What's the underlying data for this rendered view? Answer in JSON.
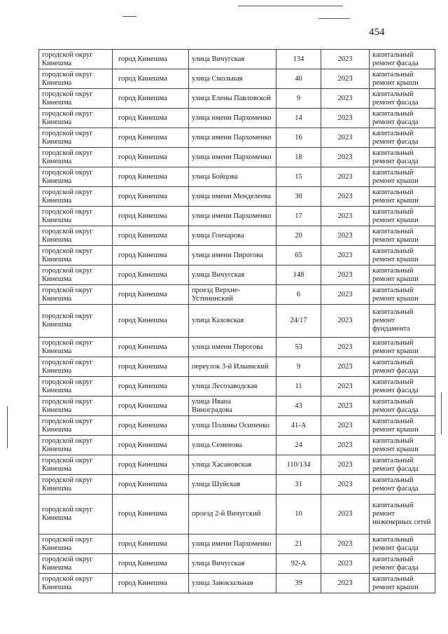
{
  "page_number": "454",
  "rows": [
    {
      "district": "городской округ Кинешма",
      "city": "город Кинешма",
      "street": "улица Вичугская",
      "house": "134",
      "year": "2023",
      "work": "капитальный ремонт фасада"
    },
    {
      "district": "городской округ Кинешма",
      "city": "город Кинешма",
      "street": "улица Смольная",
      "house": "40",
      "year": "2023",
      "work": "капитальный ремонт крыши"
    },
    {
      "district": "городской округ Кинешма",
      "city": "город Кинешма",
      "street": "улица Елены Павловской",
      "house": "9",
      "year": "2023",
      "work": "капитальный ремонт фасада"
    },
    {
      "district": "городской округ Кинешма",
      "city": "город Кинешма",
      "street": "улица имени Пархоменко",
      "house": "14",
      "year": "2023",
      "work": "капитальный ремонт фасада"
    },
    {
      "district": "городской округ Кинешма",
      "city": "город Кинешма",
      "street": "улица имени Пархоменко",
      "house": "16",
      "year": "2023",
      "work": "капитальный ремонт фасада"
    },
    {
      "district": "городской округ Кинешма",
      "city": "город Кинешма",
      "street": "улица имени Пархоменко",
      "house": "18",
      "year": "2023",
      "work": "капитальный ремонт фасада"
    },
    {
      "district": "городской округ Кинешма",
      "city": "город Кинешма",
      "street": "улица Бойцова",
      "house": "15",
      "year": "2023",
      "work": "капитальный ремонт крыши"
    },
    {
      "district": "городской округ Кинешма",
      "city": "город Кинешма",
      "street": "улица имени Менделеева",
      "house": "30",
      "year": "2023",
      "work": "капитальный ремонт крыши"
    },
    {
      "district": "городской округ Кинешма",
      "city": "город Кинешма",
      "street": "улица имени Пархоменко",
      "house": "17",
      "year": "2023",
      "work": "капитальный ремонт крыши"
    },
    {
      "district": "городской округ Кинешма",
      "city": "город Кинешма",
      "street": "улица Гончарова",
      "house": "20",
      "year": "2023",
      "work": "капитальный ремонт крыши"
    },
    {
      "district": "городской округ Кинешма",
      "city": "город Кинешма",
      "street": "улица имени Пирогова",
      "house": "65",
      "year": "2023",
      "work": "капитальный ремонт крыши"
    },
    {
      "district": "городской округ Кинешма",
      "city": "город Кинешма",
      "street": "улица Вичугская",
      "house": "148",
      "year": "2023",
      "work": "капитальный ремонт крыши"
    },
    {
      "district": "городской округ Кинешма",
      "city": "город Кинешма",
      "street": "проезд Верхне-Устининский",
      "house": "6",
      "year": "2023",
      "work": "капитальный ремонт крыши"
    },
    {
      "district": "городской округ Кинешма",
      "city": "город Кинешма",
      "street": "улица Каховская",
      "house": "24/17",
      "year": "2023",
      "work": "капитальный ремонт фундамента"
    },
    {
      "district": "городской округ Кинешма",
      "city": "город Кинешма",
      "street": "улица имени Пирогова",
      "house": "53",
      "year": "2023",
      "work": "капитальный ремонт крыши"
    },
    {
      "district": "городской округ Кинешма",
      "city": "город Кинешма",
      "street": "переулок 3-й Ильинский",
      "house": "9",
      "year": "2023",
      "work": "капитальный ремонт фасада"
    },
    {
      "district": "городской округ Кинешма",
      "city": "город Кинешма",
      "street": "улица Лесозаводская",
      "house": "11",
      "year": "2023",
      "work": "капитальный ремонт фасада"
    },
    {
      "district": "городской округ Кинешма",
      "city": "город Кинешма",
      "street": "улица Ивана Виноградова",
      "house": "43",
      "year": "2023",
      "work": "капитальный ремонт фасада"
    },
    {
      "district": "городской округ Кинешма",
      "city": "город Кинешма",
      "street": "улица Полины Осипенко",
      "house": "41-А",
      "year": "2023",
      "work": "капитальный ремонт крыши"
    },
    {
      "district": "городской округ Кинешма",
      "city": "город Кинешма",
      "street": "улица Семенова",
      "house": "24",
      "year": "2023",
      "work": "капитальный ремонт крыши"
    },
    {
      "district": "городской округ Кинешма",
      "city": "город Кинешма",
      "street": "улица Хасановская",
      "house": "110/134",
      "year": "2023",
      "work": "капитальный ремонт фасада"
    },
    {
      "district": "городской округ Кинешма",
      "city": "город Кинешма",
      "street": "улица Шуйская",
      "house": "31",
      "year": "2023",
      "work": "капитальный ремонт фасада"
    },
    {
      "district": "городской округ Кинешма",
      "city": "город Кинешма",
      "street": "проезд 2-й Вичугский",
      "house": "10",
      "year": "2023",
      "work": "капитальный ремонт инженерных сетей"
    },
    {
      "district": "городской округ Кинешма",
      "city": "город Кинешма",
      "street": "улица имени Пархоменко",
      "house": "21",
      "year": "2023",
      "work": "капитальный ремонт фасада"
    },
    {
      "district": "городской округ Кинешма",
      "city": "город Кинешма",
      "street": "улица Вичугская",
      "house": "92-А",
      "year": "2023",
      "work": "капитальный ремонт фасада"
    },
    {
      "district": "городской округ Кинешма",
      "city": "город Кинешма",
      "street": "улица Завокзальная",
      "house": "39",
      "year": "2023",
      "work": "капитальный ремонт крыши"
    }
  ]
}
